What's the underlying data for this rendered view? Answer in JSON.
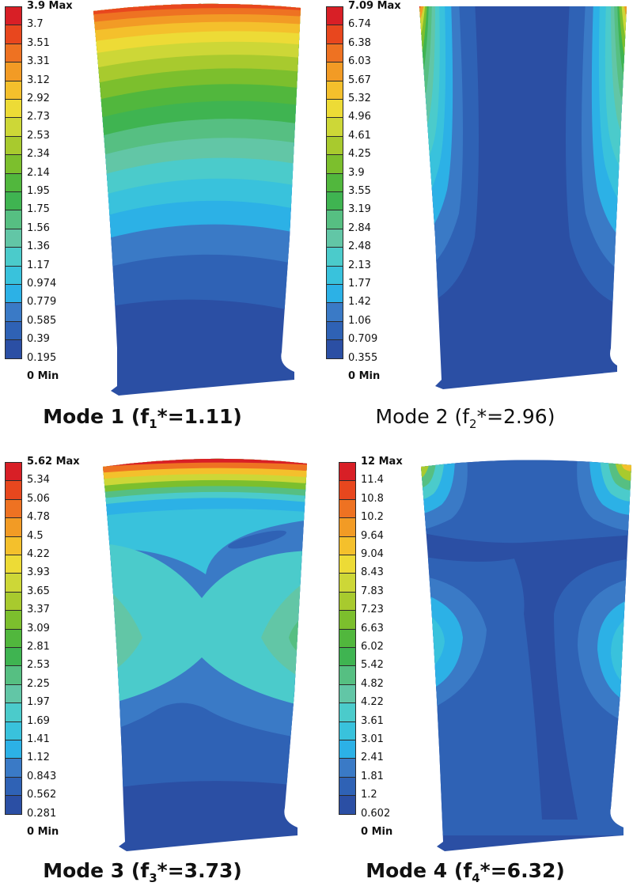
{
  "colors": [
    "#2b4fa4",
    "#2f62b5",
    "#3a7ac6",
    "#2cb1e6",
    "#39c2dc",
    "#4bcbcb",
    "#62c6a6",
    "#56bf82",
    "#3fb451",
    "#51b73d",
    "#7cbf2d",
    "#a8ca2e",
    "#cdd737",
    "#eddb36",
    "#f4c02c",
    "#f29b25",
    "#ee7222",
    "#e8471e",
    "#d81f26"
  ],
  "panels": [
    {
      "id": "mode1",
      "legend_labels": [
        "3.9 Max",
        "3.7",
        "3.51",
        "3.31",
        "3.12",
        "2.92",
        "2.73",
        "2.53",
        "2.34",
        "2.14",
        "1.95",
        "1.75",
        "1.56",
        "1.36",
        "1.17",
        "0.974",
        "0.779",
        "0.585",
        "0.39",
        "0.195",
        "0 Min"
      ],
      "caption": {
        "prefix": "Mode 1 (f",
        "sub": "1",
        "suffix": "*=1.11)"
      }
    },
    {
      "id": "mode2",
      "legend_labels": [
        "7.09 Max",
        "6.74",
        "6.38",
        "6.03",
        "5.67",
        "5.32",
        "4.96",
        "4.61",
        "4.25",
        "3.9",
        "3.55",
        "3.19",
        "2.84",
        "2.48",
        "2.13",
        "1.77",
        "1.42",
        "1.06",
        "0.709",
        "0.355",
        "0 Min"
      ],
      "caption": {
        "prefix": "Mode 2 (f",
        "sub": "2",
        "suffix": "*=2.96)"
      }
    },
    {
      "id": "mode3",
      "legend_labels": [
        "5.62 Max",
        "5.34",
        "5.06",
        "4.78",
        "4.5",
        "4.22",
        "3.93",
        "3.65",
        "3.37",
        "3.09",
        "2.81",
        "2.53",
        "2.25",
        "1.97",
        "1.69",
        "1.41",
        "1.12",
        "0.843",
        "0.562",
        "0.281",
        "0 Min"
      ],
      "caption": {
        "prefix": "Mode 3 (f",
        "sub": "3",
        "suffix": "*=3.73)"
      }
    },
    {
      "id": "mode4",
      "legend_labels": [
        "12 Max",
        "11.4",
        "10.8",
        "10.2",
        "9.64",
        "9.04",
        "8.43",
        "7.83",
        "7.23",
        "6.63",
        "6.02",
        "5.42",
        "4.82",
        "4.22",
        "3.61",
        "3.01",
        "2.41",
        "1.81",
        "1.2",
        "0.602",
        "0 Min"
      ],
      "caption": {
        "prefix": "Mode 4 (f",
        "sub": "4",
        "suffix": "*=6.32)"
      }
    }
  ]
}
